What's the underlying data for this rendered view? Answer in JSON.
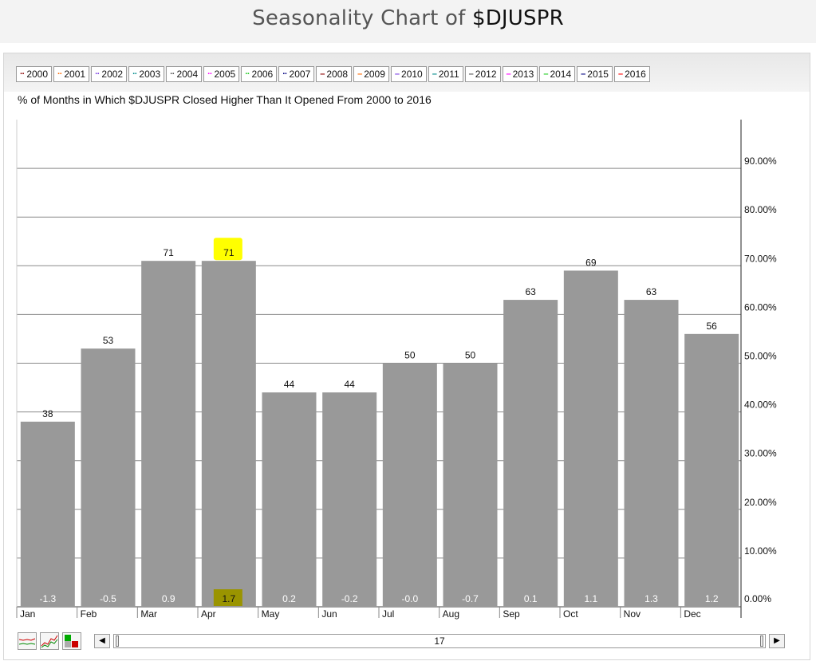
{
  "header": {
    "title_prefix": "Seasonality Chart of ",
    "symbol": "$DJUSPR"
  },
  "legend": [
    {
      "label": "2000",
      "color": "#8b0000",
      "style": "dotted"
    },
    {
      "label": "2001",
      "color": "#ff6a00",
      "style": "dotted"
    },
    {
      "label": "2002",
      "color": "#7b3fe4",
      "style": "dotted"
    },
    {
      "label": "2003",
      "color": "#008b8b",
      "style": "dotted"
    },
    {
      "label": "2004",
      "color": "#555555",
      "style": "dotted"
    },
    {
      "label": "2005",
      "color": "#ff00ff",
      "style": "dotted"
    },
    {
      "label": "2006",
      "color": "#22cc22",
      "style": "dotted"
    },
    {
      "label": "2007",
      "color": "#000080",
      "style": "dotted"
    },
    {
      "label": "2008",
      "color": "#8b0000",
      "style": "solid"
    },
    {
      "label": "2009",
      "color": "#ff6a00",
      "style": "solid"
    },
    {
      "label": "2010",
      "color": "#7b3fe4",
      "style": "solid"
    },
    {
      "label": "2011",
      "color": "#008b8b",
      "style": "solid"
    },
    {
      "label": "2012",
      "color": "#555555",
      "style": "solid"
    },
    {
      "label": "2013",
      "color": "#ff00ff",
      "style": "solid"
    },
    {
      "label": "2014",
      "color": "#22cc22",
      "style": "solid"
    },
    {
      "label": "2015",
      "color": "#000080",
      "style": "solid"
    },
    {
      "label": "2016",
      "color": "#ff0000",
      "style": "solid"
    }
  ],
  "chart_data": {
    "type": "bar",
    "title": "% of Months in Which $DJUSPR Closed Higher Than It Opened From 2000 to 2016",
    "categories": [
      "Jan",
      "Feb",
      "Mar",
      "Apr",
      "May",
      "Jun",
      "Jul",
      "Aug",
      "Sep",
      "Oct",
      "Nov",
      "Dec"
    ],
    "values": [
      38,
      53,
      71,
      71,
      44,
      44,
      50,
      50,
      63,
      69,
      63,
      56
    ],
    "value_labels": [
      "38",
      "53",
      "71",
      "71",
      "44",
      "44",
      "50",
      "50",
      "63",
      "69",
      "63",
      "56"
    ],
    "avg_change_labels": [
      "-1.3",
      "-0.5",
      "0.9",
      "1.7",
      "0.2",
      "-0.2",
      "-0.0",
      "-0.7",
      "0.1",
      "1.1",
      "1.3",
      "1.2"
    ],
    "highlighted_category": "Apr",
    "ylim": [
      0,
      100
    ],
    "y_ticks": [
      0,
      10,
      20,
      30,
      40,
      50,
      60,
      70,
      80,
      90
    ],
    "y_tick_labels": [
      "0.00%",
      "10.00%",
      "20.00%",
      "30.00%",
      "40.00%",
      "50.00%",
      "60.00%",
      "70.00%",
      "80.00%",
      "90.00%"
    ],
    "grid": true,
    "bar_color": "#999999",
    "highlight_color": "#ffff00",
    "highlight_bottom_color": "#9a9400"
  },
  "controls": {
    "year_count": "17"
  }
}
